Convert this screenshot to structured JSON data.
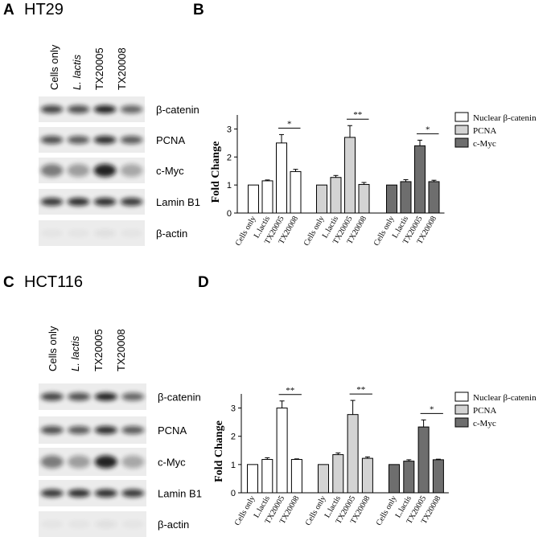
{
  "panels": [
    {
      "letter": "A",
      "title": "HT29",
      "lanes": [
        "Cells only",
        "L. lactis",
        "TX20005",
        "TX20008"
      ],
      "bands": [
        "β-catenin",
        "PCNA",
        "c-Myc",
        "Lamin B1",
        "β-actin"
      ]
    },
    {
      "letter": "C",
      "title": "HCT116",
      "lanes": [
        "Cells only",
        "L. lactis",
        "TX20005",
        "TX20008"
      ],
      "bands": [
        "β-catenin",
        "PCNA",
        "c-Myc",
        "Lamin B1",
        "β-actin"
      ]
    }
  ],
  "chart_letters": [
    "B",
    "D"
  ],
  "chart_data": [
    {
      "type": "bar",
      "y_label": "Fold Change",
      "categories": [
        "Cells only",
        "L.lactis",
        "TX20005",
        "TX20008"
      ],
      "ylim": [
        0,
        3.5
      ],
      "yticks": [
        0,
        1,
        2,
        3
      ],
      "series": [
        {
          "name": "Nuclear β-catenin",
          "color": "#ffffff",
          "values": [
            1.0,
            1.15,
            2.5,
            1.48
          ],
          "errors": [
            0,
            0.03,
            0.3,
            0.08
          ],
          "sig": "*"
        },
        {
          "name": "PCNA",
          "color": "#d3d3d3",
          "values": [
            1.0,
            1.27,
            2.7,
            1.02
          ],
          "errors": [
            0,
            0.07,
            0.42,
            0.07
          ],
          "sig": "**"
        },
        {
          "name": "c-Myc",
          "color": "#6e6e6e",
          "values": [
            1.0,
            1.12,
            2.4,
            1.12
          ],
          "errors": [
            0,
            0.07,
            0.2,
            0.05
          ],
          "sig": "*"
        }
      ]
    },
    {
      "type": "bar",
      "y_label": "Fold Change",
      "categories": [
        "Cells only",
        "L.lactis",
        "TX20005",
        "TX20008"
      ],
      "ylim": [
        0,
        3.5
      ],
      "yticks": [
        0,
        1,
        2,
        3
      ],
      "series": [
        {
          "name": "Nuclear β-catenin",
          "color": "#ffffff",
          "values": [
            1.0,
            1.18,
            3.0,
            1.18
          ],
          "errors": [
            0,
            0.06,
            0.25,
            0.02
          ],
          "sig": "**"
        },
        {
          "name": "PCNA",
          "color": "#d3d3d3",
          "values": [
            1.0,
            1.35,
            2.77,
            1.22
          ],
          "errors": [
            0,
            0.06,
            0.5,
            0.05
          ],
          "sig": "**"
        },
        {
          "name": "c-Myc",
          "color": "#6e6e6e",
          "values": [
            1.0,
            1.12,
            2.33,
            1.17
          ],
          "errors": [
            0,
            0.05,
            0.25,
            0.02
          ],
          "sig": "*"
        }
      ]
    }
  ]
}
